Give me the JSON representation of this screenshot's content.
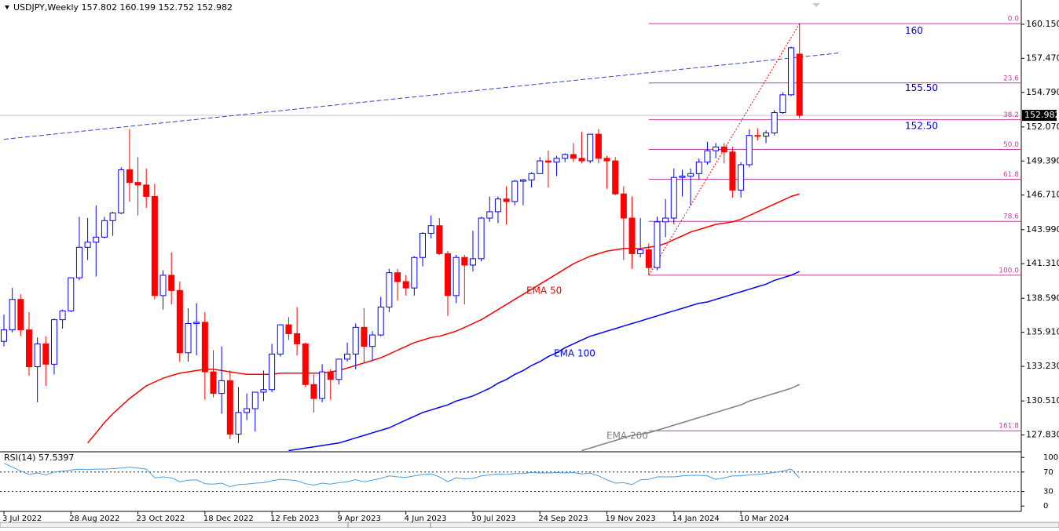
{
  "chart_data": {
    "type": "candlestick",
    "title": "USDJPY,Weekly 157.802 160.199 152.752 152.982",
    "categories": [
      "3 Jul 2022",
      null,
      null,
      null,
      null,
      null,
      null,
      null,
      "28 Aug 2022",
      null,
      null,
      null,
      null,
      null,
      null,
      null,
      "23 Oct 2022",
      null,
      null,
      null,
      null,
      null,
      null,
      null,
      "18 Dec 2022",
      null,
      null,
      null,
      null,
      null,
      null,
      null,
      "12 Feb 2023",
      null,
      null,
      null,
      null,
      null,
      null,
      null,
      "9 Apr 2023",
      null,
      null,
      null,
      null,
      null,
      null,
      null,
      "4 Jun 2023",
      null,
      null,
      null,
      null,
      null,
      null,
      null,
      "30 Jul 2023",
      null,
      null,
      null,
      null,
      null,
      null,
      null,
      "24 Sep 2023",
      null,
      null,
      null,
      null,
      null,
      null,
      null,
      "19 Nov 2023",
      null,
      null,
      null,
      null,
      null,
      null,
      null,
      "14 Jan 2024",
      null,
      null,
      null,
      null,
      null,
      null,
      null,
      "10 Mar 2024",
      null,
      null,
      null,
      null,
      null,
      null,
      null
    ],
    "open": [
      135.2,
      136.1,
      138.5,
      136.1,
      133.2,
      135.0,
      133.4,
      136.9,
      137.6,
      140.2,
      142.6,
      143.0,
      143.4,
      144.7,
      145.3,
      148.7,
      147.7,
      147.5,
      146.6,
      138.8,
      140.4,
      139.2,
      134.3,
      136.6,
      136.7,
      132.8,
      131.1,
      132.1,
      127.9,
      129.6,
      129.9,
      131.2,
      131.4,
      134.2,
      136.5,
      135.8,
      135.0,
      131.8,
      130.7,
      132.8,
      132.2,
      133.8,
      134.2,
      136.3,
      134.8,
      135.7,
      137.9,
      140.6,
      139.9,
      139.4,
      141.8,
      143.7,
      144.3,
      142.1,
      138.8,
      141.8,
      141.2,
      141.7,
      144.9,
      145.4,
      146.4,
      146.2,
      147.8,
      147.9,
      148.4,
      149.4,
      149.3,
      149.6,
      149.9,
      149.6,
      149.4,
      151.5,
      149.6,
      149.4,
      146.8,
      144.9,
      142.1,
      142.4,
      141.0,
      144.6,
      144.9,
      148.1,
      148.2,
      148.4,
      149.3,
      150.2,
      150.5,
      150.1,
      147.1,
      149.1,
      151.4,
      151.35,
      151.6,
      153.2,
      154.6,
      157.802
    ],
    "high": [
      137.3,
      139.4,
      138.9,
      137.5,
      135.5,
      135.6,
      137.0,
      137.7,
      140.2,
      145.0,
      144.9,
      145.9,
      145.0,
      145.4,
      148.9,
      151.9,
      149.7,
      148.8,
      147.6,
      140.8,
      142.2,
      139.9,
      137.8,
      138.2,
      137.5,
      134.5,
      134.8,
      132.9,
      131.6,
      131.1,
      131.2,
      132.9,
      135.0,
      136.5,
      137.1,
      137.9,
      135.1,
      132.6,
      133.4,
      133.0,
      133.8,
      135.1,
      136.6,
      137.8,
      136.0,
      138.7,
      140.9,
      140.9,
      140.4,
      141.9,
      143.8,
      145.1,
      144.9,
      142.3,
      142.0,
      142.0,
      143.9,
      145.0,
      146.6,
      146.6,
      147.4,
      147.9,
      148.0,
      148.5,
      149.7,
      150.2,
      149.8,
      150.0,
      150.8,
      151.7,
      151.5,
      151.9,
      149.8,
      149.7,
      147.4,
      146.6,
      144.9,
      142.9,
      145.0,
      146.4,
      148.8,
      148.7,
      148.8,
      149.6,
      150.9,
      150.8,
      150.8,
      150.5,
      149.3,
      151.9,
      151.97,
      151.8,
      153.4,
      154.8,
      158.4,
      160.199
    ],
    "low": [
      134.8,
      135.9,
      135.6,
      132.5,
      130.4,
      131.7,
      132.6,
      136.2,
      137.5,
      140.0,
      141.6,
      140.3,
      143.3,
      143.5,
      145.2,
      146.2,
      145.1,
      145.7,
      138.5,
      137.7,
      138.1,
      133.6,
      133.6,
      134.1,
      130.6,
      130.8,
      129.5,
      127.5,
      127.2,
      129.0,
      128.1,
      130.5,
      131.2,
      134.0,
      135.3,
      134.1,
      131.6,
      129.6,
      130.4,
      130.6,
      131.8,
      133.6,
      133.0,
      133.5,
      133.7,
      135.6,
      137.5,
      138.4,
      138.8,
      138.8,
      141.1,
      143.3,
      142.0,
      137.2,
      138.2,
      138.1,
      140.7,
      141.5,
      144.6,
      144.5,
      144.4,
      145.9,
      145.9,
      147.3,
      148.4,
      147.3,
      148.2,
      149.3,
      149.3,
      149.2,
      149.2,
      149.2,
      147.2,
      146.7,
      141.6,
      140.9,
      141.8,
      140.4,
      140.8,
      143.4,
      144.4,
      146.6,
      145.9,
      147.9,
      149.1,
      149.6,
      149.2,
      146.5,
      146.5,
      148.9,
      151.0,
      150.8,
      151.4,
      153.1,
      154.5,
      152.752
    ],
    "close": [
      136.1,
      138.5,
      136.1,
      133.2,
      135.0,
      133.4,
      136.9,
      137.6,
      140.2,
      142.6,
      143.0,
      143.4,
      144.7,
      145.3,
      148.7,
      147.7,
      147.5,
      146.6,
      138.8,
      140.4,
      139.2,
      134.3,
      136.6,
      136.7,
      132.8,
      131.1,
      132.1,
      127.9,
      129.6,
      129.9,
      131.2,
      131.4,
      134.2,
      136.5,
      135.8,
      135.0,
      131.8,
      130.7,
      132.8,
      132.2,
      133.8,
      134.2,
      136.3,
      134.8,
      135.7,
      137.9,
      140.6,
      139.9,
      139.4,
      141.8,
      143.7,
      144.3,
      142.1,
      138.8,
      141.8,
      141.2,
      141.7,
      144.9,
      145.4,
      146.4,
      146.2,
      147.8,
      147.9,
      148.4,
      149.4,
      149.3,
      149.6,
      149.9,
      149.6,
      149.4,
      151.5,
      149.6,
      149.4,
      146.8,
      144.9,
      142.1,
      142.4,
      141.0,
      144.6,
      144.9,
      148.1,
      148.2,
      148.4,
      149.3,
      150.2,
      150.5,
      150.1,
      147.1,
      149.1,
      151.4,
      151.35,
      151.6,
      153.2,
      154.6,
      158.3,
      152.982
    ],
    "up_color": "#0000ff",
    "down_color": "#ff0000",
    "ylim": [
      126.57,
      162.06
    ],
    "yticks": [
      {
        "value": 160.15,
        "label": "160.150"
      },
      {
        "value": 157.47,
        "label": "157.470"
      },
      {
        "value": 154.79,
        "label": "154.790"
      },
      {
        "value": 152.07,
        "label": "152.070"
      },
      {
        "value": 149.39,
        "label": "149.390"
      },
      {
        "value": 146.71,
        "label": "146.710"
      },
      {
        "value": 143.99,
        "label": "143.990"
      },
      {
        "value": 141.31,
        "label": "141.310"
      },
      {
        "value": 138.59,
        "label": "138.590"
      },
      {
        "value": 135.91,
        "label": "135.910"
      },
      {
        "value": 133.23,
        "label": "133.230"
      },
      {
        "value": 130.51,
        "label": "130.510"
      },
      {
        "value": 127.83,
        "label": "127.830"
      }
    ],
    "last_price": {
      "value": 152.982,
      "label": "152.982"
    },
    "series": [
      {
        "name": "EMA 50",
        "color": "#ff0000",
        "values": [
          null,
          null,
          null,
          null,
          null,
          null,
          null,
          null,
          null,
          null,
          127.2,
          128.0,
          128.8,
          129.5,
          130.1,
          130.7,
          131.2,
          131.7,
          132.0,
          132.3,
          132.5,
          132.7,
          132.8,
          132.9,
          133.0,
          133.0,
          132.9,
          132.8,
          132.7,
          132.6,
          132.6,
          132.6,
          132.6,
          132.7,
          132.7,
          132.7,
          132.7,
          132.7,
          132.7,
          132.8,
          132.9,
          133.1,
          133.3,
          133.5,
          133.7,
          133.9,
          134.2,
          134.5,
          134.8,
          135.1,
          135.3,
          135.5,
          135.6,
          135.8,
          136.0,
          136.3,
          136.6,
          136.9,
          137.3,
          137.7,
          138.1,
          138.5,
          138.9,
          139.3,
          139.7,
          140.1,
          140.5,
          140.9,
          141.3,
          141.6,
          141.9,
          142.1,
          142.3,
          142.4,
          142.5,
          142.5,
          142.5,
          142.6,
          142.7,
          142.9,
          143.2,
          143.5,
          143.8,
          144.0,
          144.2,
          144.4,
          144.5,
          144.6,
          144.8,
          145.1,
          145.4,
          145.7,
          146.0,
          146.3,
          146.6,
          146.8
        ]
      },
      {
        "name": "EMA 100",
        "color": "#0000ff",
        "values": [
          null,
          null,
          null,
          null,
          null,
          null,
          null,
          null,
          null,
          null,
          null,
          null,
          null,
          null,
          null,
          null,
          null,
          null,
          null,
          null,
          null,
          null,
          null,
          null,
          null,
          null,
          null,
          null,
          null,
          null,
          null,
          null,
          null,
          null,
          126.6,
          126.7,
          126.8,
          126.9,
          127.0,
          127.1,
          127.2,
          127.4,
          127.6,
          127.8,
          128.0,
          128.2,
          128.4,
          128.7,
          129.0,
          129.3,
          129.6,
          129.8,
          130.0,
          130.2,
          130.5,
          130.7,
          130.9,
          131.2,
          131.5,
          131.9,
          132.2,
          132.6,
          132.9,
          133.3,
          133.6,
          134.0,
          134.3,
          134.7,
          135.0,
          135.3,
          135.6,
          135.8,
          136.0,
          136.2,
          136.4,
          136.6,
          136.8,
          137.0,
          137.2,
          137.4,
          137.6,
          137.8,
          138.0,
          138.2,
          138.3,
          138.5,
          138.7,
          138.9,
          139.1,
          139.3,
          139.5,
          139.7,
          140.0,
          140.2,
          140.4,
          140.7
        ]
      },
      {
        "name": "EMA 200",
        "color": "#808080",
        "values": [
          null,
          null,
          null,
          null,
          null,
          null,
          null,
          null,
          null,
          null,
          null,
          null,
          null,
          null,
          null,
          null,
          null,
          null,
          null,
          null,
          null,
          null,
          null,
          null,
          null,
          null,
          null,
          null,
          null,
          null,
          null,
          null,
          null,
          null,
          null,
          null,
          null,
          null,
          null,
          null,
          null,
          null,
          null,
          null,
          null,
          null,
          null,
          null,
          null,
          null,
          null,
          null,
          null,
          null,
          null,
          null,
          null,
          null,
          null,
          null,
          null,
          null,
          null,
          null,
          null,
          null,
          null,
          null,
          null,
          126.6,
          126.8,
          127.0,
          127.2,
          127.4,
          127.6,
          127.8,
          127.9,
          128.0,
          128.2,
          128.4,
          128.6,
          128.8,
          129.0,
          129.2,
          129.4,
          129.6,
          129.8,
          130.0,
          130.2,
          130.5,
          130.7,
          130.9,
          131.1,
          131.3,
          131.5,
          131.8
        ]
      }
    ],
    "fibonacci": {
      "color": "#c0409c",
      "levels": [
        {
          "value": 160.2,
          "label": "0.0"
        },
        {
          "value": 155.53,
          "label": "23.6"
        },
        {
          "value": 152.64,
          "label": "38.2"
        },
        {
          "value": 150.3,
          "label": "50.0"
        },
        {
          "value": 147.96,
          "label": "61.8"
        },
        {
          "value": 144.64,
          "label": "78.6"
        },
        {
          "value": 140.4,
          "label": "100.0"
        },
        {
          "value": 128.16,
          "label": "161.8"
        }
      ]
    },
    "annotations": {
      "color": "#0000cc",
      "items": [
        {
          "value": 160,
          "label": "160"
        },
        {
          "value": 155.5,
          "label": "155.50"
        },
        {
          "value": 152.5,
          "label": "152.50"
        }
      ]
    },
    "trendline": {
      "color": "#3344cc",
      "values": [
        151.1,
        157.9
      ]
    },
    "rsi": {
      "title": "RSI(14) 57.5397",
      "color": "#4a9de0",
      "values": [
        88,
        80,
        72,
        65,
        68,
        64,
        70,
        72,
        74,
        76,
        75,
        76,
        76,
        77,
        78,
        80,
        78,
        76,
        58,
        60,
        58,
        50,
        53,
        54,
        46,
        45,
        47,
        40,
        44,
        45,
        47,
        48,
        52,
        55,
        54,
        52,
        46,
        43,
        47,
        45,
        48,
        50,
        54,
        50,
        53,
        57,
        62,
        60,
        59,
        62,
        65,
        66,
        60,
        50,
        58,
        56,
        57,
        62,
        64,
        66,
        65,
        67,
        67,
        69,
        68,
        68,
        69,
        68,
        69,
        66,
        68,
        62,
        54,
        47,
        48,
        44,
        54,
        55,
        60,
        60,
        60,
        62,
        63,
        63,
        62,
        55,
        58,
        62,
        62,
        64,
        65,
        67,
        69,
        72,
        76,
        57.5
      ],
      "ylim": [
        -11,
        110
      ],
      "yticks": [
        100,
        70,
        30,
        0
      ],
      "levels": [
        70,
        30
      ]
    }
  }
}
